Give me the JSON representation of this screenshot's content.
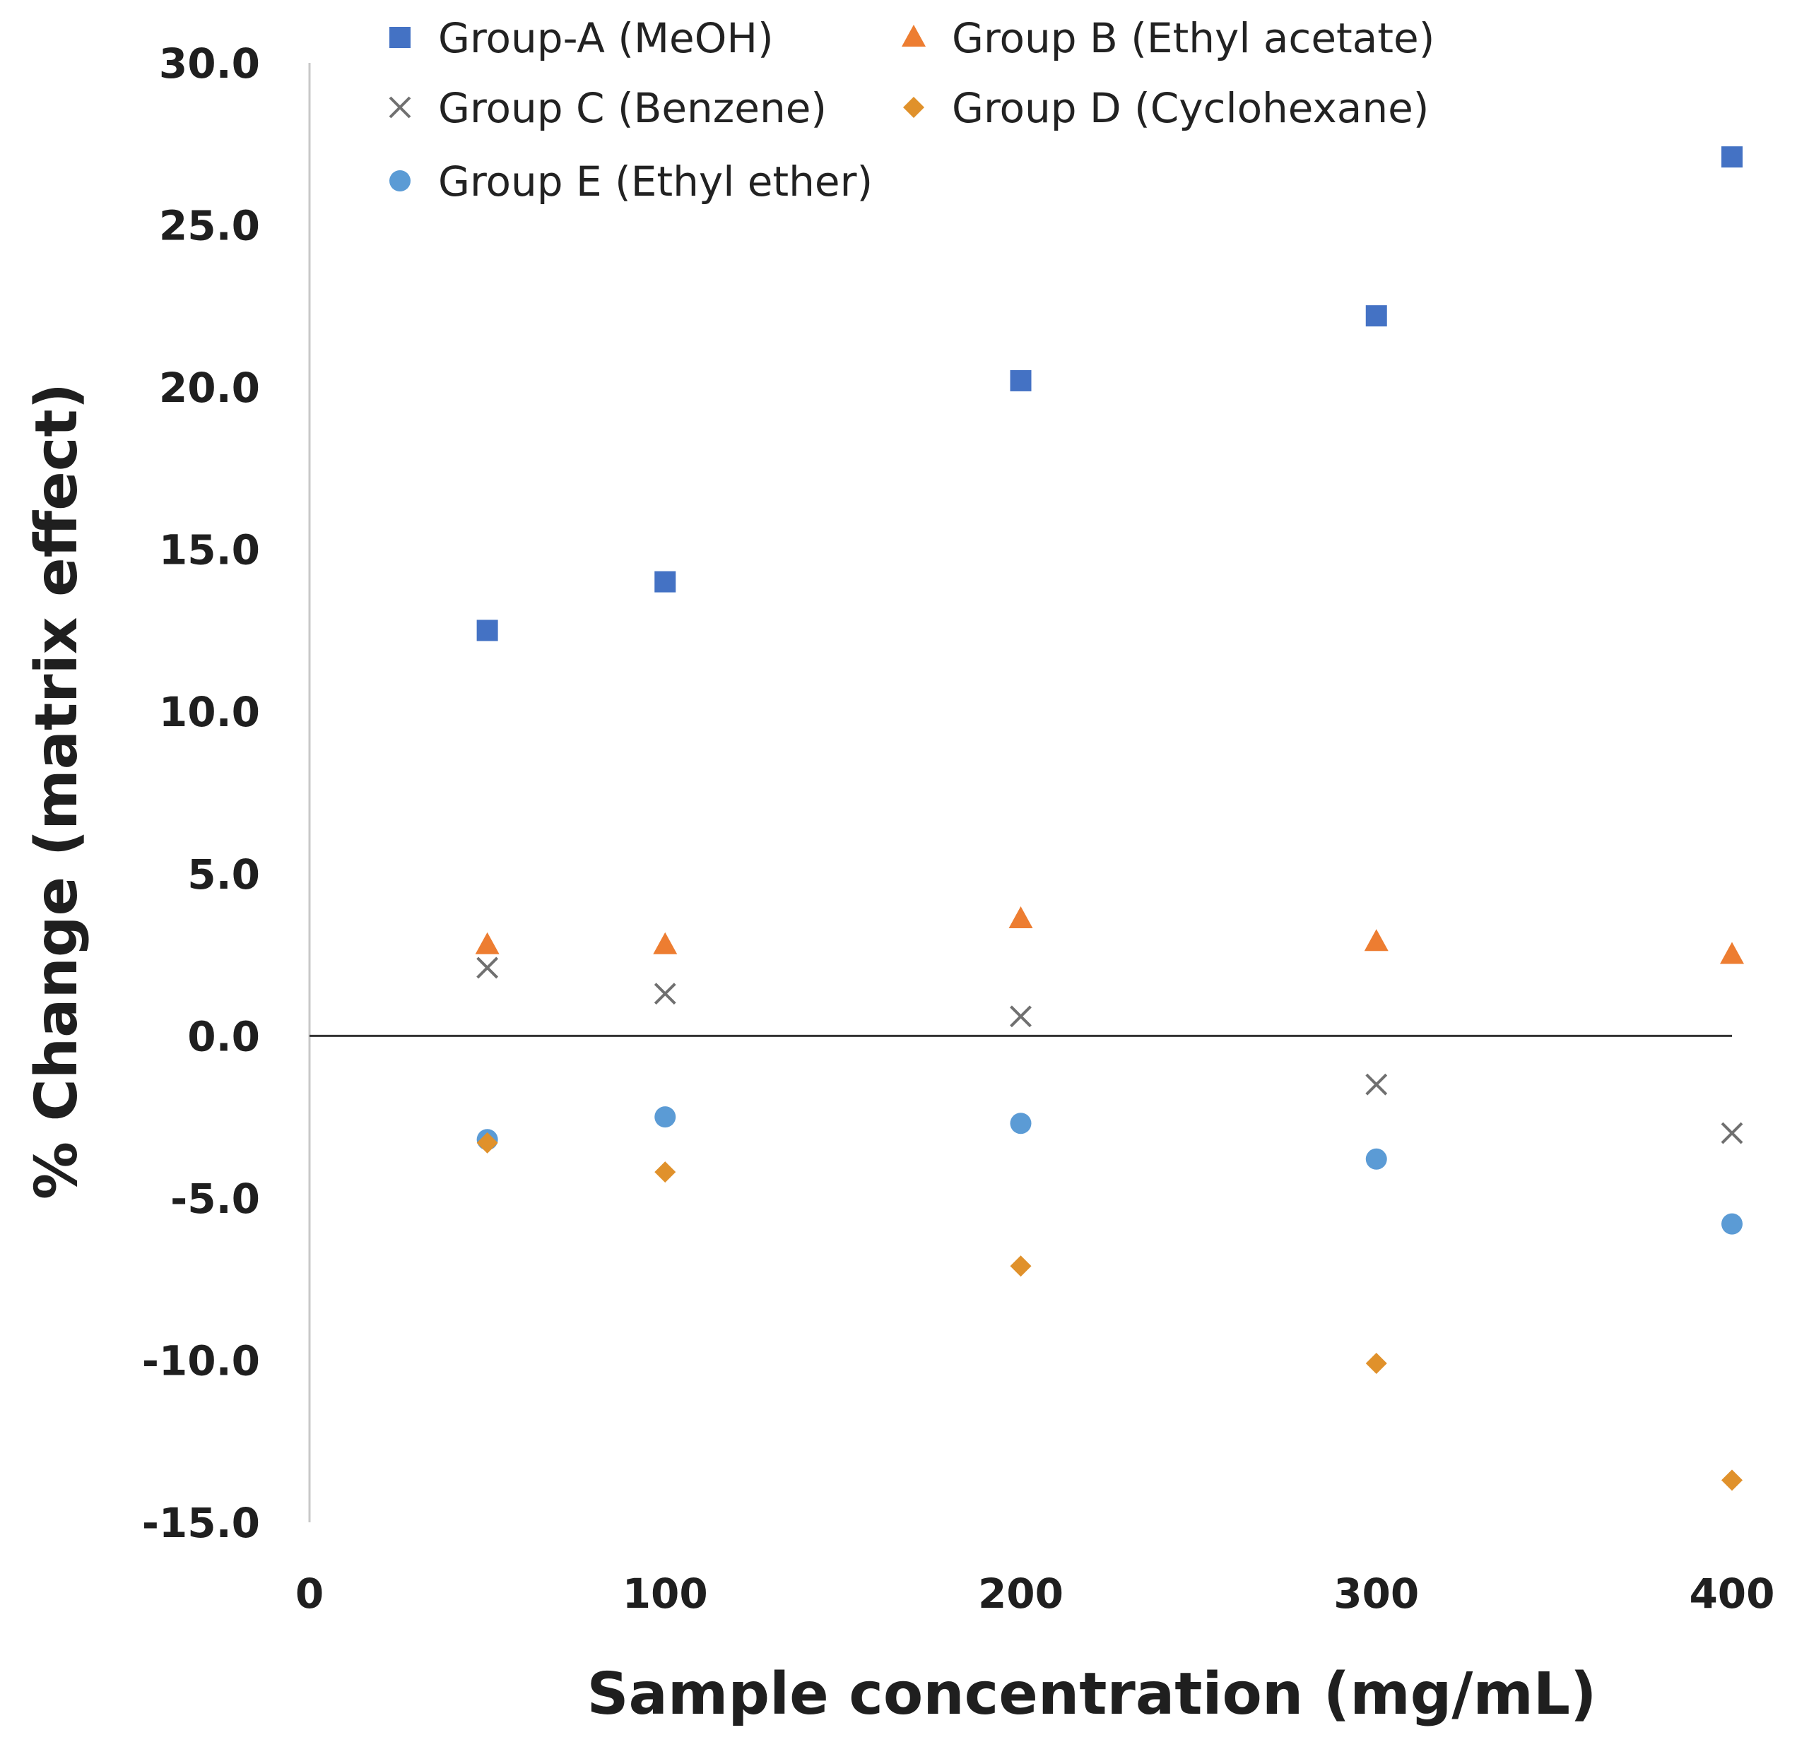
{
  "chart_data": {
    "type": "scatter",
    "title": "",
    "xlabel": "Sample concentration (mg/mL)",
    "ylabel": "% Change (matrix effect)",
    "xlim": [
      0,
      400
    ],
    "ylim": [
      -15,
      30
    ],
    "x_ticks": [
      0,
      100,
      200,
      300,
      400
    ],
    "x_tick_labels": [
      "0",
      "100",
      "200",
      "300",
      "400"
    ],
    "y_ticks": [
      30,
      25,
      20,
      15,
      10,
      5,
      0,
      -5,
      -10,
      -15
    ],
    "y_tick_labels": [
      "30.0",
      "25.0",
      "20.0",
      "15.0",
      "10.0",
      "5.0",
      "0.0",
      "-5.0",
      "-10.0",
      "-15.0"
    ],
    "grid": false,
    "legend_position": "top",
    "series": [
      {
        "name": "Group-A (MeOH)",
        "marker": "square",
        "color": "#4472C4",
        "x": [
          50,
          100,
          200,
          300,
          400
        ],
        "y": [
          12.5,
          14.0,
          20.2,
          22.2,
          27.1
        ]
      },
      {
        "name": "Group B (Ethyl acetate)",
        "marker": "triangle",
        "color": "#ED7D31",
        "x": [
          50,
          100,
          200,
          300,
          400
        ],
        "y": [
          2.8,
          2.8,
          3.6,
          2.9,
          2.5
        ]
      },
      {
        "name": "Group C (Benzene)",
        "marker": "x",
        "color": "#707070",
        "x": [
          50,
          100,
          200,
          300,
          400
        ],
        "y": [
          2.1,
          1.3,
          0.6,
          -1.5,
          -3.0
        ]
      },
      {
        "name": "Group D (Cyclohexane)",
        "marker": "diamond",
        "color": "#E0912B",
        "x": [
          50,
          100,
          200,
          300,
          400
        ],
        "y": [
          -3.3,
          -4.2,
          -7.1,
          -10.1,
          -13.7
        ]
      },
      {
        "name": "Group E (Ethyl ether)",
        "marker": "circle",
        "color": "#5B9BD5",
        "x": [
          50,
          100,
          200,
          300,
          400
        ],
        "y": [
          -3.2,
          -2.5,
          -2.7,
          -3.8,
          -5.8
        ]
      }
    ]
  }
}
